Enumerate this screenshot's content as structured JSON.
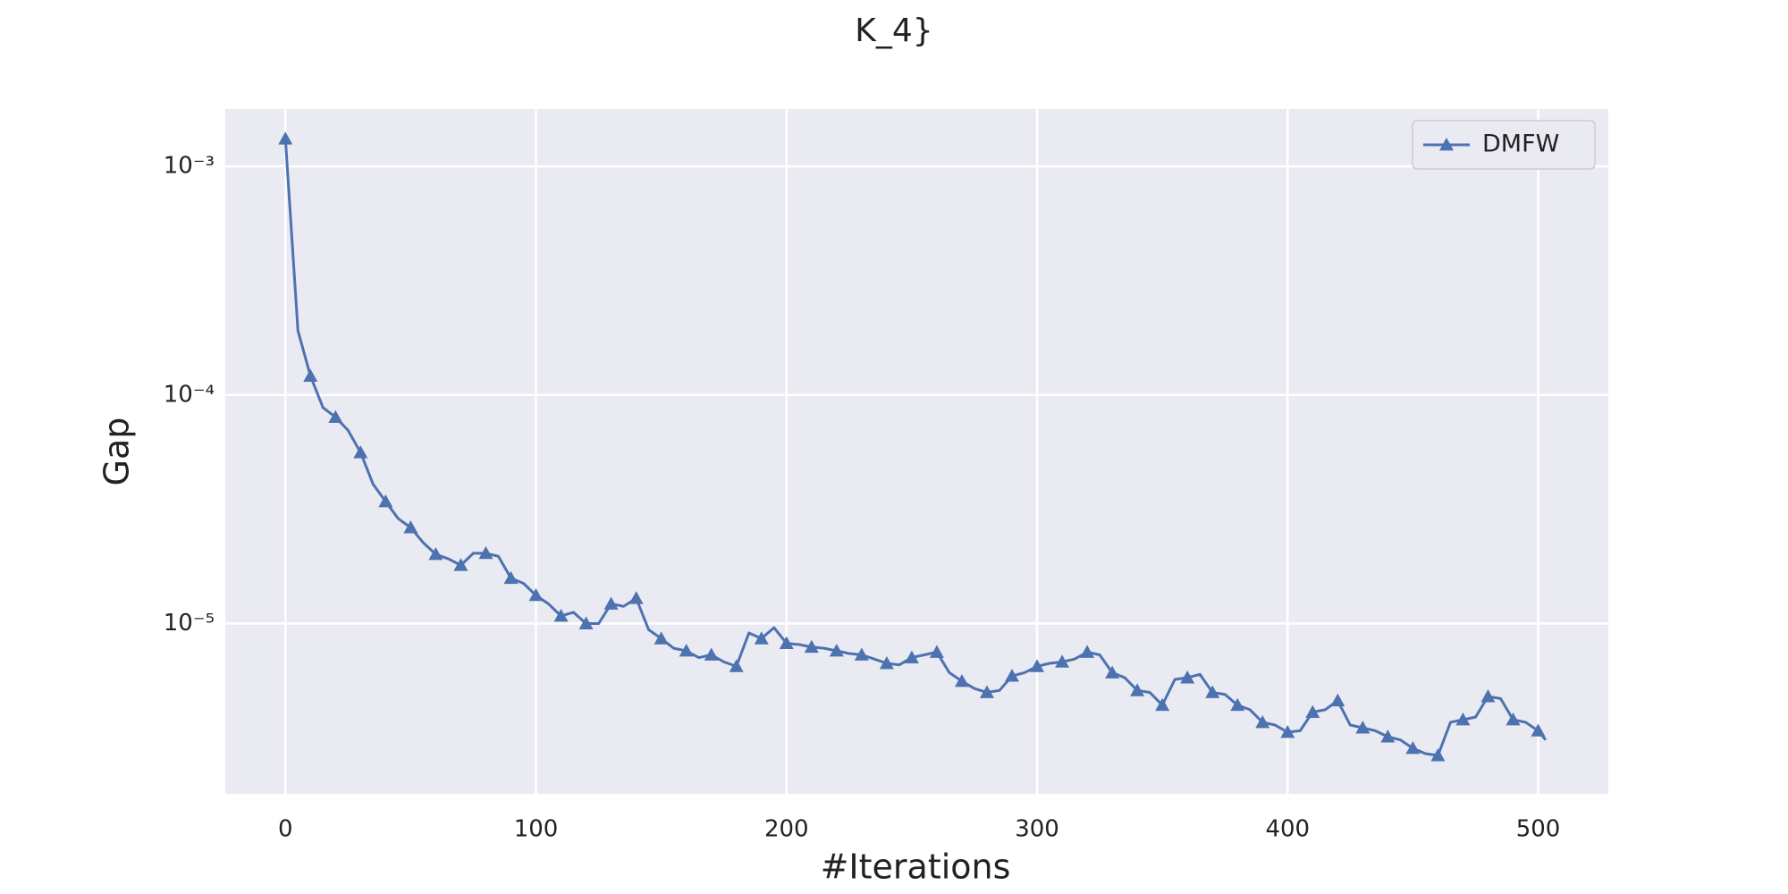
{
  "chart_data": {
    "type": "line",
    "title": "K_4}",
    "xlabel": "#Iterations",
    "ylabel": "Gap",
    "log_y": true,
    "grid": true,
    "legend": "upper right",
    "xlim": [
      -24,
      528
    ],
    "xticks": [
      0,
      100,
      200,
      300,
      400,
      500
    ],
    "ylim": [
      1.8e-06,
      0.00178
    ],
    "yticks": [
      {
        "value": 1e-05,
        "label": "10⁻⁵"
      },
      {
        "value": 0.0001,
        "label": "10⁻⁴"
      },
      {
        "value": 0.001,
        "label": "10⁻³"
      }
    ],
    "x": [
      0,
      5,
      10,
      15,
      20,
      25,
      30,
      35,
      40,
      45,
      50,
      55,
      60,
      65,
      70,
      75,
      80,
      85,
      90,
      95,
      100,
      105,
      110,
      115,
      120,
      125,
      130,
      135,
      140,
      145,
      150,
      155,
      160,
      165,
      170,
      175,
      180,
      185,
      190,
      195,
      200,
      205,
      210,
      215,
      220,
      225,
      230,
      235,
      240,
      245,
      250,
      255,
      260,
      265,
      270,
      275,
      280,
      285,
      290,
      295,
      300,
      305,
      310,
      315,
      320,
      325,
      330,
      335,
      340,
      345,
      350,
      355,
      360,
      365,
      370,
      375,
      380,
      385,
      390,
      395,
      400,
      405,
      410,
      415,
      420,
      425,
      430,
      435,
      440,
      445,
      450,
      455,
      460,
      465,
      470,
      475,
      480,
      485,
      490,
      495,
      500,
      503
    ],
    "series": [
      {
        "name": "DMFW",
        "color": "#4c72b0",
        "marker": "triangle",
        "markevery": 2,
        "values": [
          0.00132,
          0.000191,
          0.000121,
          8.8e-05,
          8e-05,
          7e-05,
          5.6e-05,
          4.07e-05,
          3.42e-05,
          2.88e-05,
          2.63e-05,
          2.26e-05,
          2.01e-05,
          1.92e-05,
          1.8e-05,
          2.03e-05,
          2.03e-05,
          1.97e-05,
          1.58e-05,
          1.5e-05,
          1.33e-05,
          1.22e-05,
          1.08e-05,
          1.12e-05,
          1e-05,
          1e-05,
          1.22e-05,
          1.19e-05,
          1.29e-05,
          9.4e-06,
          8.6e-06,
          7.8e-06,
          7.6e-06,
          7.1e-06,
          7.3e-06,
          6.8e-06,
          6.5e-06,
          9.1e-06,
          8.6e-06,
          9.6e-06,
          8.2e-06,
          8.1e-06,
          7.9e-06,
          7.8e-06,
          7.6e-06,
          7.4e-06,
          7.3e-06,
          7e-06,
          6.7e-06,
          6.6e-06,
          7.1e-06,
          7.3e-06,
          7.5e-06,
          6.1e-06,
          5.6e-06,
          5.2e-06,
          5e-06,
          5.1e-06,
          5.9e-06,
          6.1e-06,
          6.5e-06,
          6.7e-06,
          6.8e-06,
          7e-06,
          7.5e-06,
          7.3e-06,
          6.1e-06,
          5.8e-06,
          5.1e-06,
          5e-06,
          4.4e-06,
          5.7e-06,
          5.8e-06,
          6e-06,
          5e-06,
          4.9e-06,
          4.4e-06,
          4.2e-06,
          3.7e-06,
          3.6e-06,
          3.35e-06,
          3.4e-06,
          4.1e-06,
          4.2e-06,
          4.6e-06,
          3.6e-06,
          3.5e-06,
          3.4e-06,
          3.2e-06,
          3.1e-06,
          2.85e-06,
          2.7e-06,
          2.65e-06,
          3.7e-06,
          3.8e-06,
          3.9e-06,
          4.8e-06,
          4.7e-06,
          3.8e-06,
          3.7e-06,
          3.4e-06,
          3.1e-06
        ]
      }
    ]
  }
}
